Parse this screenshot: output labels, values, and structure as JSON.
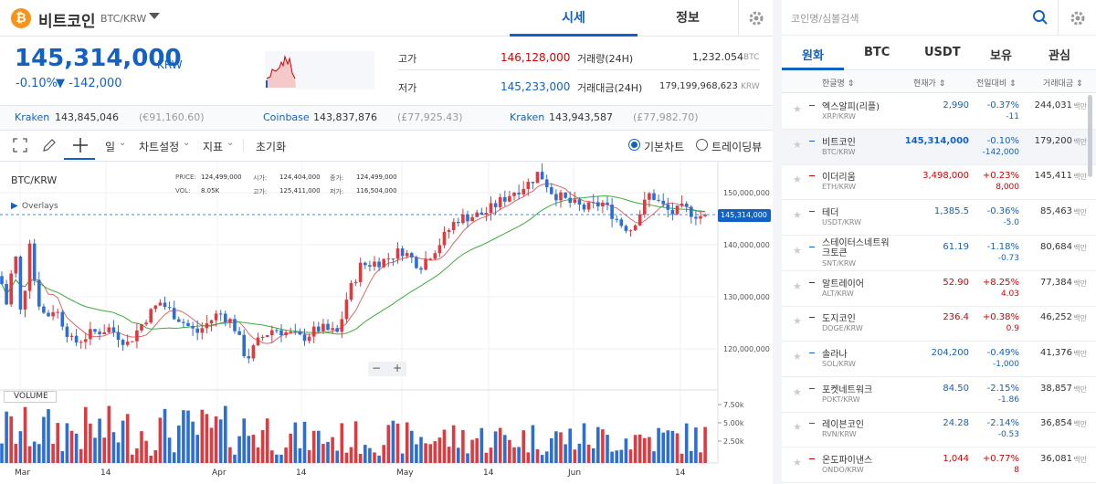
{
  "header": {
    "coin_name": "비트코인",
    "pair": "BTC/KRW",
    "tab_price": "시세",
    "tab_info": "정보"
  },
  "price": {
    "current": "145,314,000",
    "unit": "KRW",
    "change_pct": "-0.10%",
    "change_abs": "▼ -142,000"
  },
  "stats": {
    "high_label": "고가",
    "high": "146,128,000",
    "low_label": "저가",
    "low": "145,233,000",
    "vol_label": "거래량(24H)",
    "vol": "1,232.054",
    "vol_unit": "BTC",
    "amt_label": "거래대금(24H)",
    "amt": "179,199,968,623",
    "amt_unit": "KRW"
  },
  "exchanges": [
    {
      "name": "Kraken",
      "price": "143,845,046",
      "fx": "(€91,160.60)"
    },
    {
      "name": "Coinbase",
      "price": "143,837,876",
      "fx": "(£77,925.43)"
    },
    {
      "name": "Kraken",
      "price": "143,943,587",
      "fx": "(£77,982.70)"
    }
  ],
  "toolbar": {
    "interval": "일",
    "chart_settings": "차트설정",
    "indicators": "지표",
    "reset": "초기화",
    "basic_chart": "기본차트",
    "trading_view": "트레이딩뷰"
  },
  "chart_info": {
    "symbol": "BTC/KRW",
    "overlays": "Overlays",
    "volume": "VOLUME",
    "price_l": "PRICE:",
    "price_v": "124,499,000",
    "open_l": "시가:",
    "open_v": "124,404,000",
    "close_l": "종가:",
    "close_v": "124,499,000",
    "vol_l": "VOL:",
    "vol_v": "8.05K",
    "high_l": "고가:",
    "high_v": "125,411,000",
    "low_l": "저가:",
    "low_v": "116,504,000",
    "price_tag": "145,314,000",
    "zoom_minus": "−",
    "zoom_plus": "+"
  },
  "chart_data": {
    "type": "candlestick",
    "title": "BTC/KRW",
    "y_ticks": [
      "150,000,000",
      "140,000,000",
      "130,000,000",
      "120,000,000"
    ],
    "vol_ticks": [
      "7.50k",
      "5.00k",
      "2.50k"
    ],
    "x_ticks": [
      "Mar",
      "14",
      "Apr",
      "14",
      "May",
      "14",
      "Jun",
      "14"
    ],
    "last_price": 145314000,
    "ylim": [
      113000000,
      156000000
    ]
  },
  "market": {
    "search_placeholder": "코인명/심볼검색",
    "tabs": [
      "원화",
      "BTC",
      "USDT",
      "보유",
      "관심"
    ],
    "col_name": "한글명 ⇕",
    "col_price": "현재가 ⇕",
    "col_change": "전일대비 ⇕",
    "col_volume": "거래대금 ⇕",
    "rows": [
      {
        "name": "엑스알피(리플)",
        "sym": "XRP/KRW",
        "price": "2,990",
        "pct": "-0.37%",
        "abs": "-11",
        "vol": "244,031",
        "unit": "백만",
        "dir": "down"
      },
      {
        "name": "비트코인",
        "sym": "BTC/KRW",
        "price": "145,314,000",
        "pct": "-0.10%",
        "abs": "-142,000",
        "vol": "179,200",
        "unit": "백만",
        "dir": "down"
      },
      {
        "name": "이더리움",
        "sym": "ETH/KRW",
        "price": "3,498,000",
        "pct": "+0.23%",
        "abs": "8,000",
        "vol": "145,411",
        "unit": "백만",
        "dir": "up"
      },
      {
        "name": "테더",
        "sym": "USDT/KRW",
        "price": "1,385.5",
        "pct": "-0.36%",
        "abs": "-5.0",
        "vol": "85,463",
        "unit": "백만",
        "dir": "down"
      },
      {
        "name": "스테이터스네트워크토큰",
        "sym": "SNT/KRW",
        "price": "61.19",
        "pct": "-1.18%",
        "abs": "-0.73",
        "vol": "80,684",
        "unit": "백만",
        "dir": "down"
      },
      {
        "name": "알트레이어",
        "sym": "ALT/KRW",
        "price": "52.90",
        "pct": "+8.25%",
        "abs": "4.03",
        "vol": "77,384",
        "unit": "백만",
        "dir": "up"
      },
      {
        "name": "도지코인",
        "sym": "DOGE/KRW",
        "price": "236.4",
        "pct": "+0.38%",
        "abs": "0.9",
        "vol": "46,252",
        "unit": "백만",
        "dir": "up"
      },
      {
        "name": "솔라나",
        "sym": "SOL/KRW",
        "price": "204,200",
        "pct": "-0.49%",
        "abs": "-1,000",
        "vol": "41,376",
        "unit": "백만",
        "dir": "down"
      },
      {
        "name": "포켓네트워크",
        "sym": "POKT/KRW",
        "price": "84.50",
        "pct": "-2.15%",
        "abs": "-1.86",
        "vol": "38,857",
        "unit": "백만",
        "dir": "down"
      },
      {
        "name": "레이븐코인",
        "sym": "RVN/KRW",
        "price": "24.28",
        "pct": "-2.14%",
        "abs": "-0.53",
        "vol": "36,854",
        "unit": "백만",
        "dir": "down"
      },
      {
        "name": "온도파이낸스",
        "sym": "ONDO/KRW",
        "price": "1,044",
        "pct": "+0.77%",
        "abs": "8",
        "vol": "36,081",
        "unit": "백만",
        "dir": "up"
      }
    ]
  }
}
